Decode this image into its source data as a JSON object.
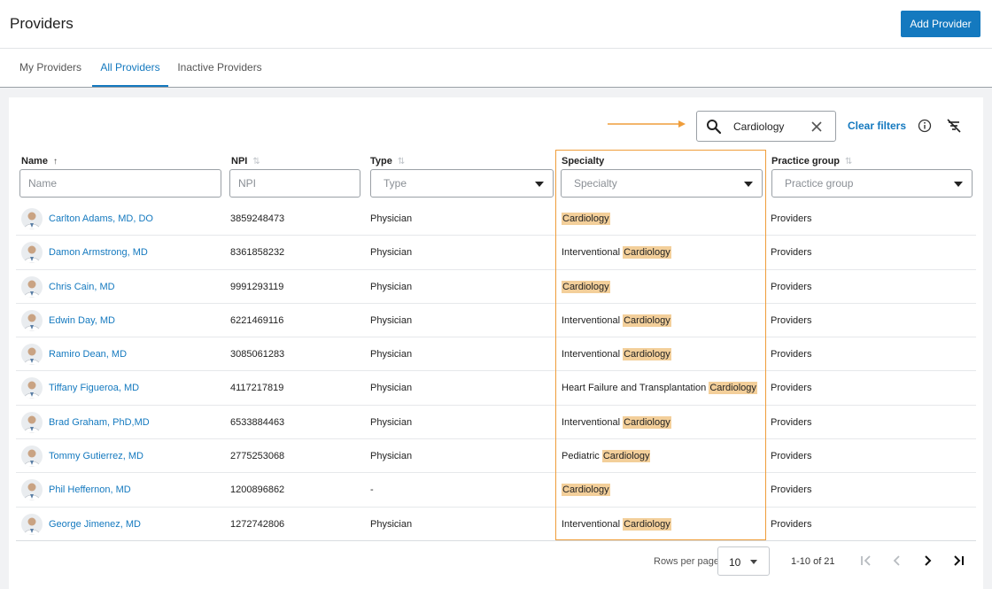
{
  "header": {
    "title": "Providers",
    "add_label": "Add Provider"
  },
  "tabs": [
    {
      "label": "My Providers",
      "active": false
    },
    {
      "label": "All Providers",
      "active": true
    },
    {
      "label": "Inactive Providers",
      "active": false
    }
  ],
  "toolbar": {
    "search_value": "Cardiology",
    "clear_filters_label": "Clear filters",
    "icons": [
      "search-icon",
      "close-icon",
      "info-icon",
      "filter-off-icon"
    ]
  },
  "columns": [
    {
      "label": "Name",
      "placeholder": "Name",
      "kind": "text",
      "sort": "asc"
    },
    {
      "label": "NPI",
      "placeholder": "NPI",
      "kind": "text",
      "sort": "none"
    },
    {
      "label": "Type",
      "placeholder": "Type",
      "kind": "select",
      "sort": "none"
    },
    {
      "label": "Specialty",
      "placeholder": "Specialty",
      "kind": "select",
      "sort": "none"
    },
    {
      "label": "Practice group",
      "placeholder": "Practice group",
      "kind": "select",
      "sort": "none"
    }
  ],
  "highlight_term": "Cardiology",
  "rows": [
    {
      "name": "Carlton Adams, MD, DO",
      "npi": "3859248473",
      "type": "Physician",
      "specialty_prefix": "",
      "specialty_match": "Cardiology",
      "practice_group": "Providers"
    },
    {
      "name": "Damon Armstrong, MD",
      "npi": "8361858232",
      "type": "Physician",
      "specialty_prefix": "Interventional ",
      "specialty_match": "Cardiology",
      "practice_group": "Providers"
    },
    {
      "name": "Chris Cain, MD",
      "npi": "9991293119",
      "type": "Physician",
      "specialty_prefix": "",
      "specialty_match": "Cardiology",
      "practice_group": "Providers"
    },
    {
      "name": "Edwin Day, MD",
      "npi": "6221469116",
      "type": "Physician",
      "specialty_prefix": "Interventional ",
      "specialty_match": "Cardiology",
      "practice_group": "Providers"
    },
    {
      "name": "Ramiro Dean, MD",
      "npi": "3085061283",
      "type": "Physician",
      "specialty_prefix": "Interventional ",
      "specialty_match": "Cardiology",
      "practice_group": "Providers"
    },
    {
      "name": "Tiffany Figueroa, MD",
      "npi": "4117217819",
      "type": "Physician",
      "specialty_prefix": "Heart Failure and Transplantation ",
      "specialty_match": "Cardiology",
      "practice_group": "Providers"
    },
    {
      "name": "Brad Graham, PhD,MD",
      "npi": "6533884463",
      "type": "Physician",
      "specialty_prefix": "Interventional ",
      "specialty_match": "Cardiology",
      "practice_group": "Providers"
    },
    {
      "name": "Tommy Gutierrez, MD",
      "npi": "2775253068",
      "type": "Physician",
      "specialty_prefix": "Pediatric ",
      "specialty_match": "Cardiology",
      "practice_group": "Providers"
    },
    {
      "name": "Phil Heffernon, MD",
      "npi": "1200896862",
      "type": "-",
      "specialty_prefix": "",
      "specialty_match": "Cardiology",
      "practice_group": "Providers"
    },
    {
      "name": "George Jimenez, MD",
      "npi": "1272742806",
      "type": "Physician",
      "specialty_prefix": "Interventional ",
      "specialty_match": "Cardiology",
      "practice_group": "Providers"
    }
  ],
  "pagination": {
    "rows_per_page_label": "Rows per page",
    "rows_per_page": "10",
    "range": "1-10 of 21",
    "icons": [
      "first-page-icon",
      "prev-page-icon",
      "next-page-icon",
      "last-page-icon"
    ]
  },
  "colors": {
    "accent": "#1479bf",
    "highlight": "#f3cf9a",
    "annotation": "#ef9d3a"
  }
}
